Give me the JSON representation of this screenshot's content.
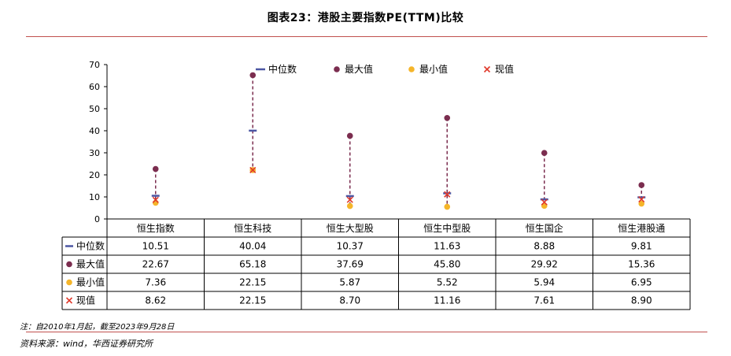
{
  "title": "图表23：港股主要指数PE(TTM)比较",
  "note": "注：自2010年1月起，截至2023年9月28日",
  "source": "资料来源：wind，华西证券研究所",
  "colors": {
    "median": "#4c56a3",
    "max": "#7b2d4f",
    "min": "#f5b52a",
    "current": "#e0392b",
    "range_line": "#7b2d4f",
    "rule": "#c0504d"
  },
  "chart_data": {
    "type": "scatter",
    "ylim": [
      0,
      70
    ],
    "yticks": [
      0,
      10,
      20,
      30,
      40,
      50,
      60,
      70
    ],
    "categories": [
      "恒生指数",
      "恒生科技",
      "恒生大型股",
      "恒生中型股",
      "恒生国企",
      "恒生港股通"
    ],
    "series": [
      {
        "key": "median",
        "name": "中位数",
        "marker": "dash",
        "labels": [
          "10.51",
          "40.04",
          "10.37",
          "11.63",
          "8.88",
          "9.81"
        ],
        "values": [
          10.51,
          40.04,
          10.37,
          11.63,
          8.88,
          9.81
        ]
      },
      {
        "key": "max",
        "name": "最大值",
        "marker": "circle",
        "labels": [
          "22.67",
          "65.18",
          "37.69",
          "45.80",
          "29.92",
          "15.36"
        ],
        "values": [
          22.67,
          65.18,
          37.69,
          45.8,
          29.92,
          15.36
        ]
      },
      {
        "key": "min",
        "name": "最小值",
        "marker": "circle",
        "labels": [
          "7.36",
          "22.15",
          "5.87",
          "5.52",
          "5.94",
          "6.95"
        ],
        "values": [
          7.36,
          22.15,
          5.87,
          5.52,
          5.94,
          6.95
        ]
      },
      {
        "key": "current",
        "name": "现值",
        "marker": "cross",
        "labels": [
          "8.62",
          "22.15",
          "8.70",
          "11.16",
          "7.61",
          "8.90"
        ],
        "values": [
          8.62,
          22.15,
          8.7,
          11.16,
          7.61,
          8.9
        ]
      }
    ],
    "legend_position": "top",
    "data_table": true,
    "grid": false
  }
}
